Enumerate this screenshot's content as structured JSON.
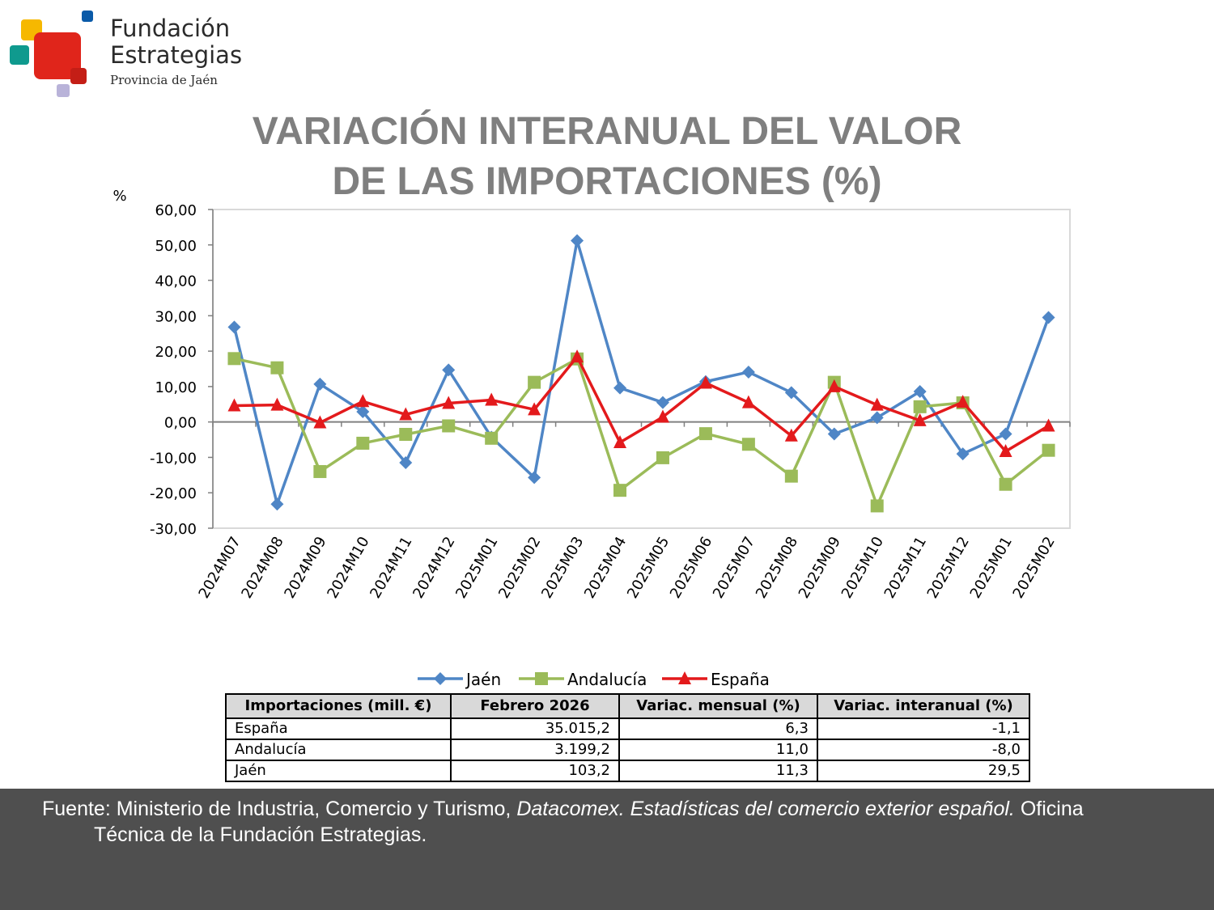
{
  "logo": {
    "line1": "Fundación",
    "line2": "Estrategias",
    "line3": "Provincia de Jaén",
    "colors": {
      "red": "#e0251b",
      "yellow": "#f6b800",
      "teal": "#0f9a8e",
      "blue": "#0a5aa8",
      "lilac": "#b9b3d9"
    }
  },
  "title": {
    "line1": "VARIACIÓN INTERANUAL DEL VALOR",
    "line2": "DE LAS IMPORTACIONES (%)"
  },
  "chart_data": {
    "type": "line",
    "ylabel": "%",
    "ylim": [
      -30,
      60
    ],
    "yticks": [
      "60,00",
      "50,00",
      "40,00",
      "30,00",
      "20,00",
      "10,00",
      "0,00",
      "-10,00",
      "-20,00",
      "-30,00"
    ],
    "categories": [
      "2024M07",
      "2024M08",
      "2024M09",
      "2024M10",
      "2024M11",
      "2024M12",
      "2025M01",
      "2025M02",
      "2025M03",
      "2025M04",
      "2025M05",
      "2025M06",
      "2025M07",
      "2025M08",
      "2025M09",
      "2025M10",
      "2025M11",
      "2025M12",
      "2025M01",
      "2025M02"
    ],
    "grid": false,
    "legend_position": "bottom",
    "series": [
      {
        "name": "Jaén",
        "color": "#4f86c6",
        "marker": "diamond",
        "values": [
          26.8,
          -23.2,
          10.7,
          2.9,
          -11.5,
          14.7,
          -4.3,
          -15.7,
          51.2,
          9.6,
          5.5,
          11.4,
          14.1,
          8.3,
          -3.4,
          1.2,
          8.6,
          -9.0,
          -3.4,
          29.5
        ]
      },
      {
        "name": "Andalucía",
        "color": "#9bbb59",
        "marker": "square",
        "values": [
          17.9,
          15.3,
          -14.0,
          -6.0,
          -3.5,
          -1.1,
          -4.6,
          11.2,
          17.8,
          -19.3,
          -10.1,
          -3.3,
          -6.3,
          -15.3,
          11.2,
          -23.7,
          4.3,
          5.4,
          -17.6,
          -8.0
        ]
      },
      {
        "name": "España",
        "color": "#e31a1c",
        "marker": "triangle",
        "values": [
          4.6,
          4.8,
          -0.2,
          5.8,
          2.1,
          5.3,
          6.2,
          3.5,
          18.4,
          -5.8,
          1.4,
          11.0,
          5.5,
          -3.9,
          10.0,
          4.8,
          0.4,
          5.6,
          -8.3,
          -1.1
        ]
      }
    ]
  },
  "table": {
    "headers": [
      "Importaciones (mill. €)",
      "Febrero 2026",
      "Variac. mensual (%)",
      "Variac. interanual (%)"
    ],
    "rows": [
      [
        "España",
        "35.015,2",
        "6,3",
        "-1,1"
      ],
      [
        "Andalucía",
        "3.199,2",
        "11,0",
        "-8,0"
      ],
      [
        "Jaén",
        "103,2",
        "11,3",
        "29,5"
      ]
    ]
  },
  "footer": {
    "part1": "Fuente: Ministerio de Industria, Comercio y Turismo, ",
    "italic": "Datacomex. Estadísticas del comercio exterior español.",
    "part2": "  Oficina",
    "line2": "Técnica de la Fundación Estrategias."
  }
}
